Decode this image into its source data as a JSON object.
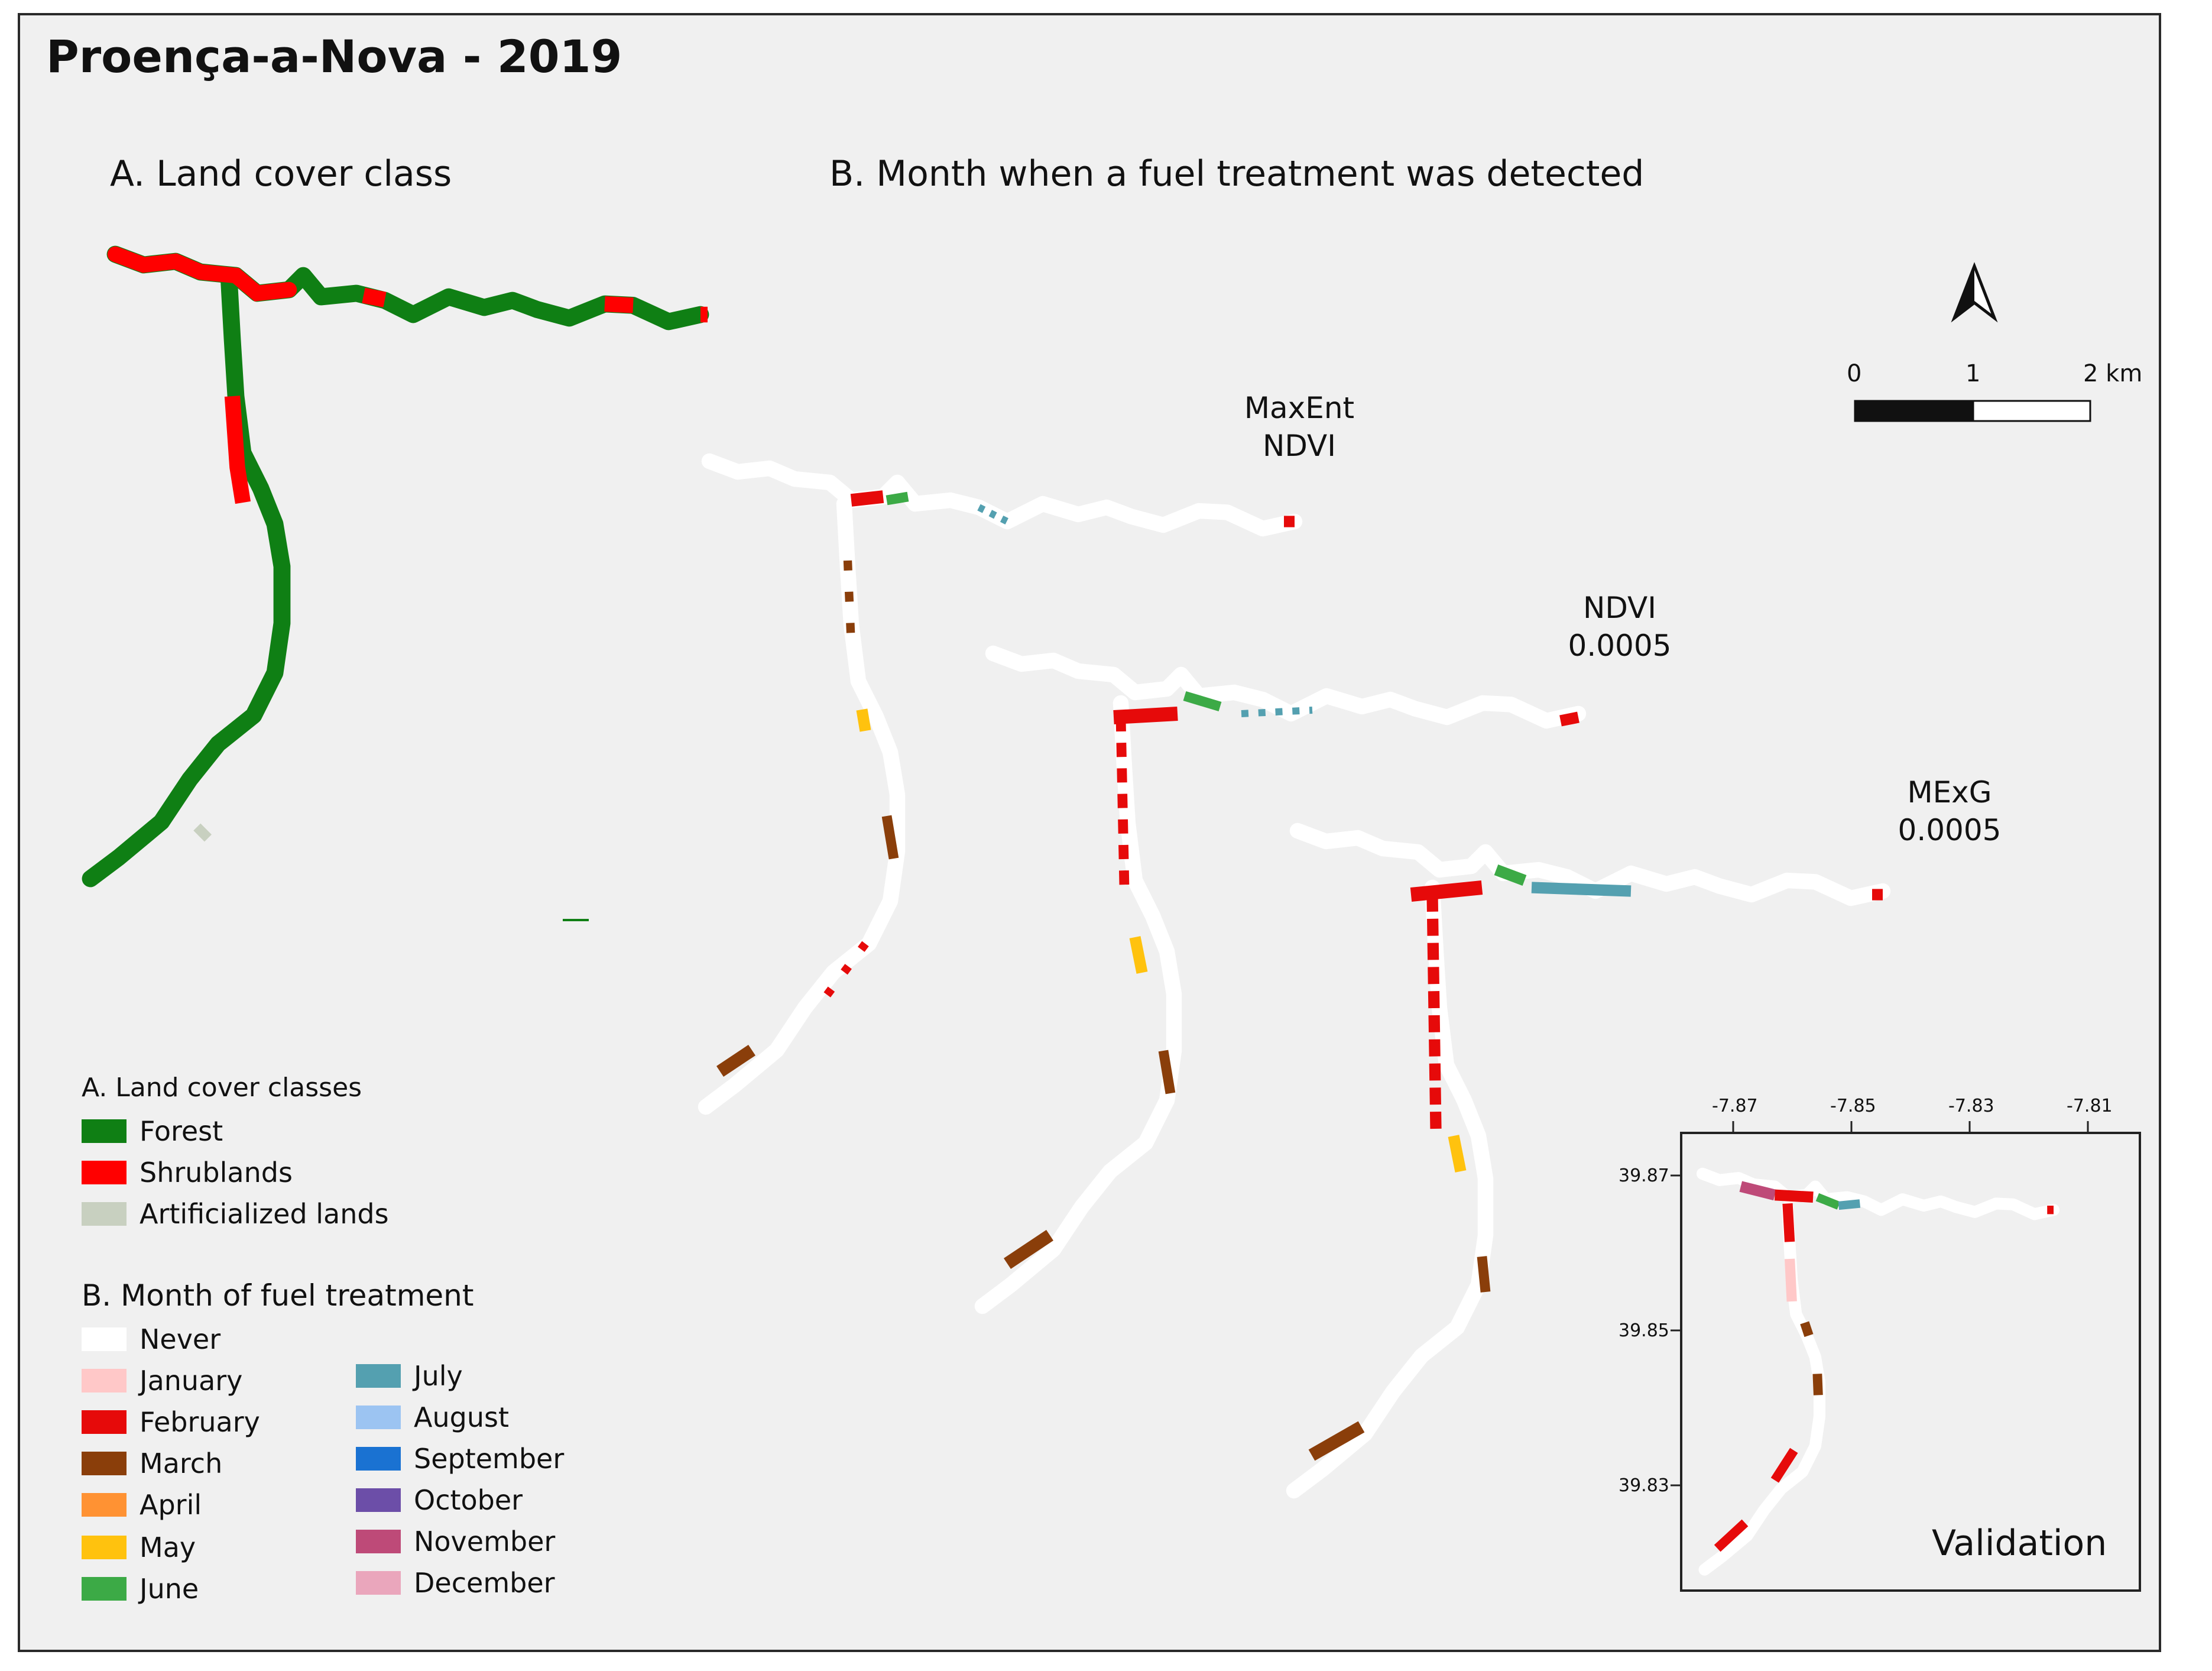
{
  "title": "Proença-a-Nova - 2019",
  "panels": {
    "a_title": "A. Land cover class",
    "b_title": "B. Month when a fuel treatment was detected"
  },
  "map_labels": [
    {
      "line1": "MaxEnt",
      "line2": "NDVI"
    },
    {
      "line1": "NDVI",
      "line2": "0.0005"
    },
    {
      "line1": "MExG",
      "line2": "0.0005"
    }
  ],
  "scale_bar": {
    "labels": [
      "0",
      "1",
      "2 km"
    ]
  },
  "north_arrow": {
    "icon": "north-arrow-icon"
  },
  "legend_a": {
    "heading": "A. Land cover classes",
    "items": [
      {
        "label": "Forest",
        "color": "#0f7f14"
      },
      {
        "label": "Shrublands",
        "color": "#ff0000"
      },
      {
        "label": "Artificialized lands",
        "color": "#c8d0c0"
      }
    ]
  },
  "legend_b": {
    "heading": "B. Month of fuel treatment",
    "items": [
      {
        "label": "Never",
        "color": "#ffffff"
      },
      {
        "label": "January",
        "color": "#ffc8c8"
      },
      {
        "label": "February",
        "color": "#e60a0a"
      },
      {
        "label": "March",
        "color": "#8a3e0a"
      },
      {
        "label": "April",
        "color": "#ff9233"
      },
      {
        "label": "May",
        "color": "#ffc20e"
      },
      {
        "label": "June",
        "color": "#3caa46"
      },
      {
        "label": "July",
        "color": "#54a0b0"
      },
      {
        "label": "August",
        "color": "#9cc4f2"
      },
      {
        "label": "September",
        "color": "#1a72d2"
      },
      {
        "label": "October",
        "color": "#6c4ea8"
      },
      {
        "label": "November",
        "color": "#be4a78"
      },
      {
        "label": "December",
        "color": "#eaa6bc"
      }
    ]
  },
  "inset": {
    "label": "Validation",
    "lon_ticks": [
      "-7.87",
      "-7.85",
      "-7.83",
      "-7.81"
    ],
    "lat_ticks": [
      "39.87",
      "39.85",
      "39.83"
    ]
  }
}
